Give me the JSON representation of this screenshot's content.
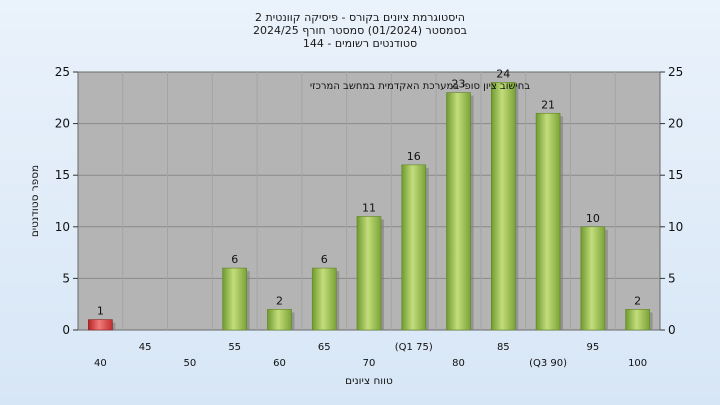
{
  "chart_data": {
    "type": "bar",
    "title_lines": [
      "היסטוגרמת ציונים בקורס - פיסיקה קוונטית 2",
      "בסמסטר  (01/2024)  סמסטר חורף 2024/25",
      "סטודנטים רשומים - 144"
    ],
    "annotation": "בחישוב ציון סופי במערכת האקדמית במחשב המרכזי",
    "xlabel": "טווח ציונים",
    "ylabel": "מספר סטודנטים",
    "ylim": [
      0,
      25
    ],
    "yticks": [
      0,
      5,
      10,
      15,
      20,
      25
    ],
    "categories": [
      "40",
      "45",
      "50",
      "55",
      "60",
      "65",
      "70",
      "(Q1 75)",
      "80",
      "85",
      "(Q3 90)",
      "95",
      "100"
    ],
    "values": [
      1,
      0,
      0,
      6,
      2,
      6,
      11,
      16,
      23,
      24,
      21,
      10,
      2
    ],
    "value_labels": [
      "1",
      "",
      "",
      "6",
      "2",
      "6",
      "11",
      "16",
      "23",
      "24",
      "21",
      "10",
      "2"
    ],
    "highlight": {
      "x_from": 75,
      "x_peak": 85,
      "x_to": 90
    },
    "grid": true,
    "colors": {
      "bar": "#8fb84a",
      "bar_low": "#d23b3b",
      "highlight": "#f6bd43",
      "plot_bg": "#b4b4b4"
    }
  }
}
